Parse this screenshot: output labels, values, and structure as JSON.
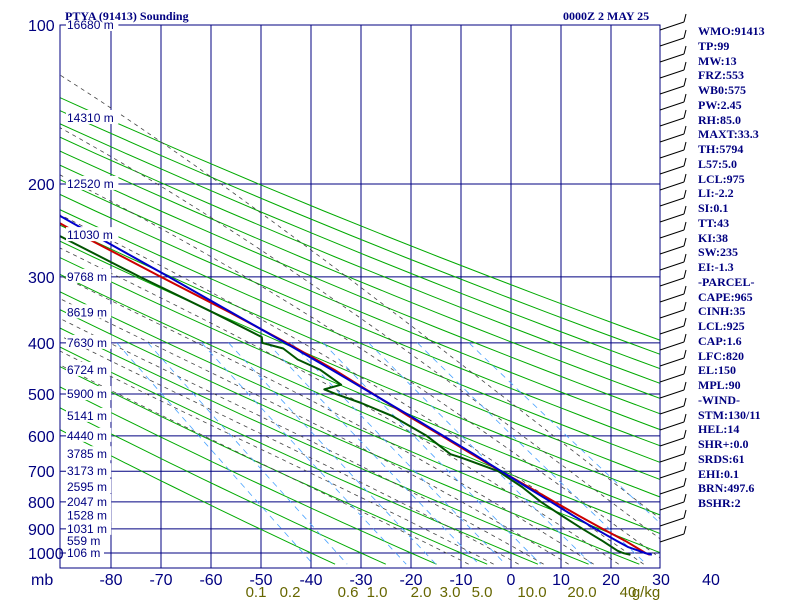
{
  "header": {
    "station": "PTYA (91413) Sounding",
    "datetime": "0000Z  2 MAY 25"
  },
  "stats": [
    "WMO:91413",
    "TP:99",
    "MW:13",
    "FRZ:553",
    "WB0:575",
    "PW:2.45",
    "RH:85.0",
    "MAXT:33.3",
    "TH:5794",
    "L57:5.0",
    "LCL:975",
    "LI:-2.2",
    "SI:0.1",
    "TT:43",
    "KI:38",
    "SW:235",
    "EI:-1.3",
    "-PARCEL-",
    "CAPE:965",
    "CINH:35",
    "LCL:925",
    "CAP:1.6",
    "LFC:820",
    "EL:150",
    "MPL:90",
    "-WIND-",
    "STM:130/11",
    "HEL:14",
    "SHR+:0.0",
    "SRDS:61",
    "EHI:0.1",
    "BRN:497.6",
    "BSHR:2"
  ],
  "colors": {
    "frame": "#000080",
    "isotherm": "#0000aa",
    "dry_adiabat": "#00aa00",
    "moist_adiabat": "#444444",
    "mixing_ratio": "#4aa3ff",
    "temperature": "#cc0000",
    "dewpoint": "#005500",
    "parcel": "#0000cc",
    "mixing_label": "#666600",
    "wind_barb": "#000000"
  },
  "chart_data": {
    "type": "line",
    "xlabel": "mb",
    "pressure_ticks": [
      100,
      200,
      300,
      400,
      500,
      600,
      700,
      800,
      900,
      1000
    ],
    "temp_ticks": [
      -80,
      -70,
      -60,
      -50,
      -40,
      -30,
      -20,
      -10,
      0,
      10,
      20,
      30,
      40
    ],
    "temp_tick_labels": [
      "-80",
      "-70",
      "-60",
      "-50",
      "-40",
      "-30",
      "-20",
      "-10",
      "0",
      "10",
      "20",
      "30",
      "40"
    ],
    "mixing_ratio_labels": [
      "0.1",
      "0.2",
      "0.6",
      "1.0",
      "2.0",
      "3.0",
      "5.0",
      "10.0",
      "20.0",
      "40",
      "g/kg"
    ],
    "height_labels": [
      {
        "p": 100,
        "text": "16680 m"
      },
      {
        "p": 150,
        "text": "14310 m"
      },
      {
        "p": 200,
        "text": "12520 m"
      },
      {
        "p": 250,
        "text": "11030 m"
      },
      {
        "p": 300,
        "text": "9768 m"
      },
      {
        "p": 350,
        "text": "8619 m"
      },
      {
        "p": 400,
        "text": "7630 m"
      },
      {
        "p": 450,
        "text": "6724 m"
      },
      {
        "p": 500,
        "text": "5900 m"
      },
      {
        "p": 550,
        "text": "5141 m"
      },
      {
        "p": 600,
        "text": "4440 m"
      },
      {
        "p": 650,
        "text": "3785 m"
      },
      {
        "p": 700,
        "text": "3173 m"
      },
      {
        "p": 750,
        "text": "2595 m"
      },
      {
        "p": 800,
        "text": "2047 m"
      },
      {
        "p": 850,
        "text": "1528 m"
      },
      {
        "p": 900,
        "text": "1031 m"
      },
      {
        "p": 950,
        "text": "559 m"
      },
      {
        "p": 1000,
        "text": "106 m"
      }
    ],
    "series": [
      {
        "key": "temperature",
        "points": [
          [
            100,
            -80.9
          ],
          [
            120,
            -73.4
          ],
          [
            150,
            -64.5
          ],
          [
            200,
            -53.4
          ],
          [
            250,
            -42.2
          ],
          [
            300,
            -32.0
          ],
          [
            350,
            -23.1
          ],
          [
            400,
            -15.9
          ],
          [
            450,
            -10.1
          ],
          [
            500,
            -5.6
          ],
          [
            550,
            -1.7
          ],
          [
            600,
            2.3
          ],
          [
            650,
            5.8
          ],
          [
            700,
            9.2
          ],
          [
            750,
            12.6
          ],
          [
            800,
            15.7
          ],
          [
            850,
            18.7
          ],
          [
            900,
            21.6
          ],
          [
            950,
            24.6
          ],
          [
            1000,
            26.9
          ],
          [
            1008,
            27.5
          ]
        ]
      },
      {
        "key": "dewpoint",
        "points": [
          [
            120,
            -81.2
          ],
          [
            150,
            -71.7
          ],
          [
            200,
            -60.2
          ],
          [
            230,
            -53.3
          ],
          [
            250,
            -46.8
          ],
          [
            300,
            -36.2
          ],
          [
            350,
            -26.5
          ],
          [
            390,
            -20.1
          ],
          [
            400,
            -20.8
          ],
          [
            410,
            -17.4
          ],
          [
            430,
            -16.0
          ],
          [
            450,
            -12.9
          ],
          [
            480,
            -10.8
          ],
          [
            490,
            -14.8
          ],
          [
            500,
            -13.1
          ],
          [
            520,
            -9.3
          ],
          [
            550,
            -4.9
          ],
          [
            600,
            -0.7
          ],
          [
            650,
            1.5
          ],
          [
            660,
            3.2
          ],
          [
            700,
            8.7
          ],
          [
            750,
            11.3
          ],
          [
            800,
            13.0
          ],
          [
            850,
            15.3
          ],
          [
            900,
            17.6
          ],
          [
            950,
            20.0
          ],
          [
            990,
            21.6
          ],
          [
            1000,
            22.4
          ],
          [
            1008,
            23.6
          ]
        ]
      },
      {
        "key": "parcel",
        "points": [
          [
            110,
            -83.4
          ],
          [
            150,
            -65.9
          ],
          [
            200,
            -50.7
          ],
          [
            250,
            -39.6
          ],
          [
            300,
            -30.4
          ],
          [
            350,
            -22.8
          ],
          [
            400,
            -16.2
          ],
          [
            450,
            -10.6
          ],
          [
            500,
            -5.7
          ],
          [
            550,
            -1.3
          ],
          [
            600,
            2.6
          ],
          [
            650,
            6.2
          ],
          [
            700,
            9.3
          ],
          [
            750,
            12.2
          ],
          [
            800,
            15.0
          ],
          [
            850,
            17.6
          ],
          [
            900,
            20.2
          ],
          [
            950,
            22.9
          ],
          [
            975,
            24.3
          ],
          [
            1000,
            26.8
          ],
          [
            1008,
            27.9
          ]
        ]
      }
    ]
  }
}
